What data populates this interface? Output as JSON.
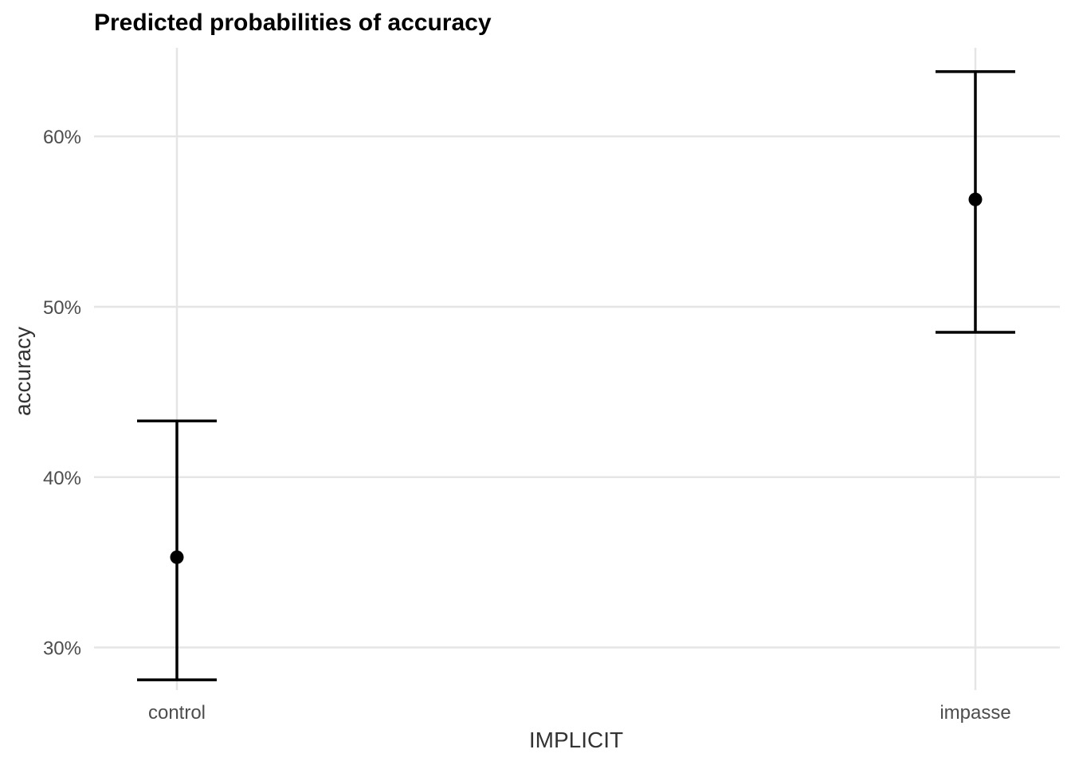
{
  "chart_data": {
    "type": "scatter",
    "title": "Predicted probabilities of accuracy",
    "xlabel": "IMPLICIT",
    "ylabel": "accuracy",
    "categories": [
      "control",
      "impasse"
    ],
    "points": [
      {
        "category": "control",
        "value": 35.3,
        "ci_low": 28.1,
        "ci_high": 43.3
      },
      {
        "category": "impasse",
        "value": 56.3,
        "ci_low": 48.5,
        "ci_high": 63.8
      }
    ],
    "y_ticks": [
      30,
      40,
      50,
      60
    ],
    "y_tick_labels": [
      "30%",
      "40%",
      "50%",
      "60%"
    ],
    "ylim": [
      27.5,
      65.2
    ],
    "grid": true,
    "legend": "none",
    "colors": {
      "points": "#000000",
      "error_bars": "#000000",
      "grid": "#e5e5e5"
    }
  }
}
